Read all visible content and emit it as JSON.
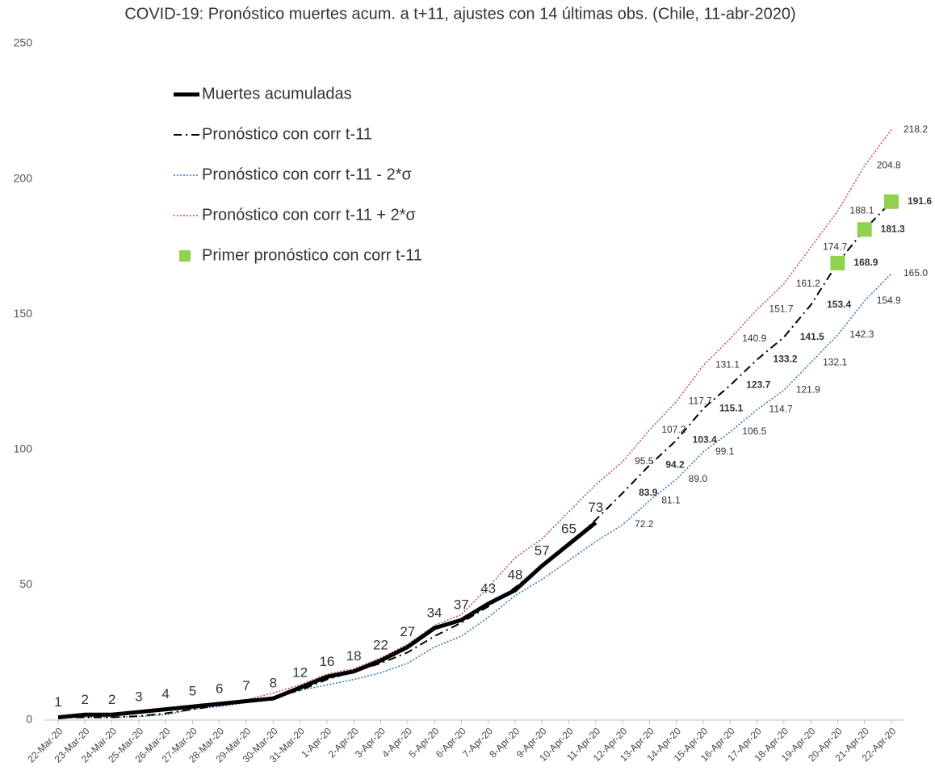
{
  "chart_data": {
    "type": "line",
    "title": "COVID-19: Pronóstico muertes acum. a t+11, ajustes con 14 últimas obs. (Chile, 11-abr-2020)",
    "categories": [
      "22-Mar-20",
      "23-Mar-20",
      "24-Mar-20",
      "25-Mar-20",
      "26-Mar-20",
      "27-Mar-20",
      "28-Mar-20",
      "29-Mar-20",
      "30-Mar-20",
      "31-Mar-20",
      "1-Apr-20",
      "2-Apr-20",
      "3-Apr-20",
      "4-Apr-20",
      "5-Apr-20",
      "6-Apr-20",
      "7-Apr-20",
      "8-Apr-20",
      "9-Apr-20",
      "10-Apr-20",
      "11-Apr-20",
      "12-Apr-20",
      "13-Apr-20",
      "14-Apr-20",
      "15-Apr-20",
      "16-Apr-20",
      "17-Apr-20",
      "18-Apr-20",
      "19-Apr-20",
      "20-Apr-20",
      "21-Apr-20",
      "22-Apr-20"
    ],
    "ylim": [
      0,
      250
    ],
    "yticks": [
      0,
      50,
      100,
      150,
      200,
      250
    ],
    "grid": false,
    "legend": "upper left",
    "series": [
      {
        "name": "Muertes acumuladas",
        "color": "#000000",
        "line_style": "solid",
        "values": [
          1,
          2,
          2,
          3,
          4,
          5,
          6,
          7,
          8,
          12,
          16,
          18,
          22,
          27,
          34,
          37,
          43,
          48,
          57,
          65,
          73,
          null,
          null,
          null,
          null,
          null,
          null,
          null,
          null,
          null,
          null,
          null
        ]
      },
      {
        "name": "Pronóstico con corr t-11",
        "color": "#000000",
        "line_style": "dashdot",
        "values": [
          1,
          1,
          1,
          1.5,
          2.5,
          4,
          5.5,
          7,
          8.5,
          11,
          15,
          18,
          21,
          25,
          31,
          36,
          42,
          49,
          57,
          65,
          74,
          83.9,
          94.2,
          103.4,
          115.1,
          123.7,
          133.2,
          141.5,
          153.4,
          168.9,
          181.3,
          191.6
        ],
        "value_labels": [
          null,
          null,
          null,
          null,
          null,
          null,
          null,
          null,
          null,
          null,
          null,
          null,
          null,
          null,
          null,
          null,
          null,
          null,
          null,
          null,
          null,
          "83.9",
          "94.2",
          "103.4",
          "115.1",
          "123.7",
          "133.2",
          "141.5",
          "153.4",
          "168.9",
          "181.3",
          "191.6"
        ]
      },
      {
        "name": "Pronóstico con corr t-11 - 2*σ",
        "color": "#2e75b6",
        "line_style": "dotted",
        "values": [
          1,
          1,
          1,
          1.3,
          2,
          4,
          5,
          6.5,
          8,
          11,
          13,
          15,
          17.5,
          21,
          27,
          31,
          38,
          46,
          52,
          59,
          66,
          72.2,
          81.1,
          89.0,
          99.1,
          106.5,
          114.7,
          121.9,
          132.1,
          142.3,
          154.9,
          165.0
        ],
        "value_labels": [
          null,
          null,
          null,
          null,
          null,
          null,
          null,
          null,
          null,
          null,
          null,
          null,
          null,
          null,
          null,
          null,
          null,
          null,
          null,
          null,
          null,
          "72.2",
          "81.1",
          "89.0",
          "99.1",
          "106.5",
          "114.7",
          "121.9",
          "132.1",
          "142.3",
          "154.9",
          "165.0"
        ]
      },
      {
        "name": "Pronóstico con corr t-11 + 2*σ",
        "color": "#c0504d",
        "line_style": "dotted",
        "values": [
          1,
          1.5,
          2,
          2.5,
          3.5,
          5,
          6,
          7.5,
          10,
          13,
          17,
          19,
          23,
          28,
          35,
          39,
          49,
          60,
          67,
          77,
          87,
          95.5,
          107.2,
          117.7,
          131.1,
          140.9,
          151.7,
          161.2,
          174.7,
          188.1,
          204.8,
          218.2
        ],
        "value_labels": [
          null,
          null,
          null,
          null,
          null,
          null,
          null,
          null,
          null,
          null,
          null,
          null,
          null,
          null,
          null,
          null,
          null,
          null,
          null,
          null,
          null,
          "95.5",
          "107.2",
          "117.7",
          "131.1",
          "140.9",
          "151.7",
          "161.2",
          "174.7",
          "188.1",
          "204.8",
          "218.2"
        ]
      },
      {
        "name": "Primer pronóstico con corr t-11",
        "color": "#92d050",
        "line_style": "markers",
        "values": [
          null,
          null,
          null,
          null,
          null,
          null,
          null,
          null,
          null,
          null,
          null,
          null,
          null,
          null,
          null,
          null,
          null,
          null,
          null,
          null,
          null,
          null,
          null,
          null,
          null,
          null,
          null,
          null,
          null,
          168.9,
          181.3,
          191.6
        ]
      }
    ]
  }
}
